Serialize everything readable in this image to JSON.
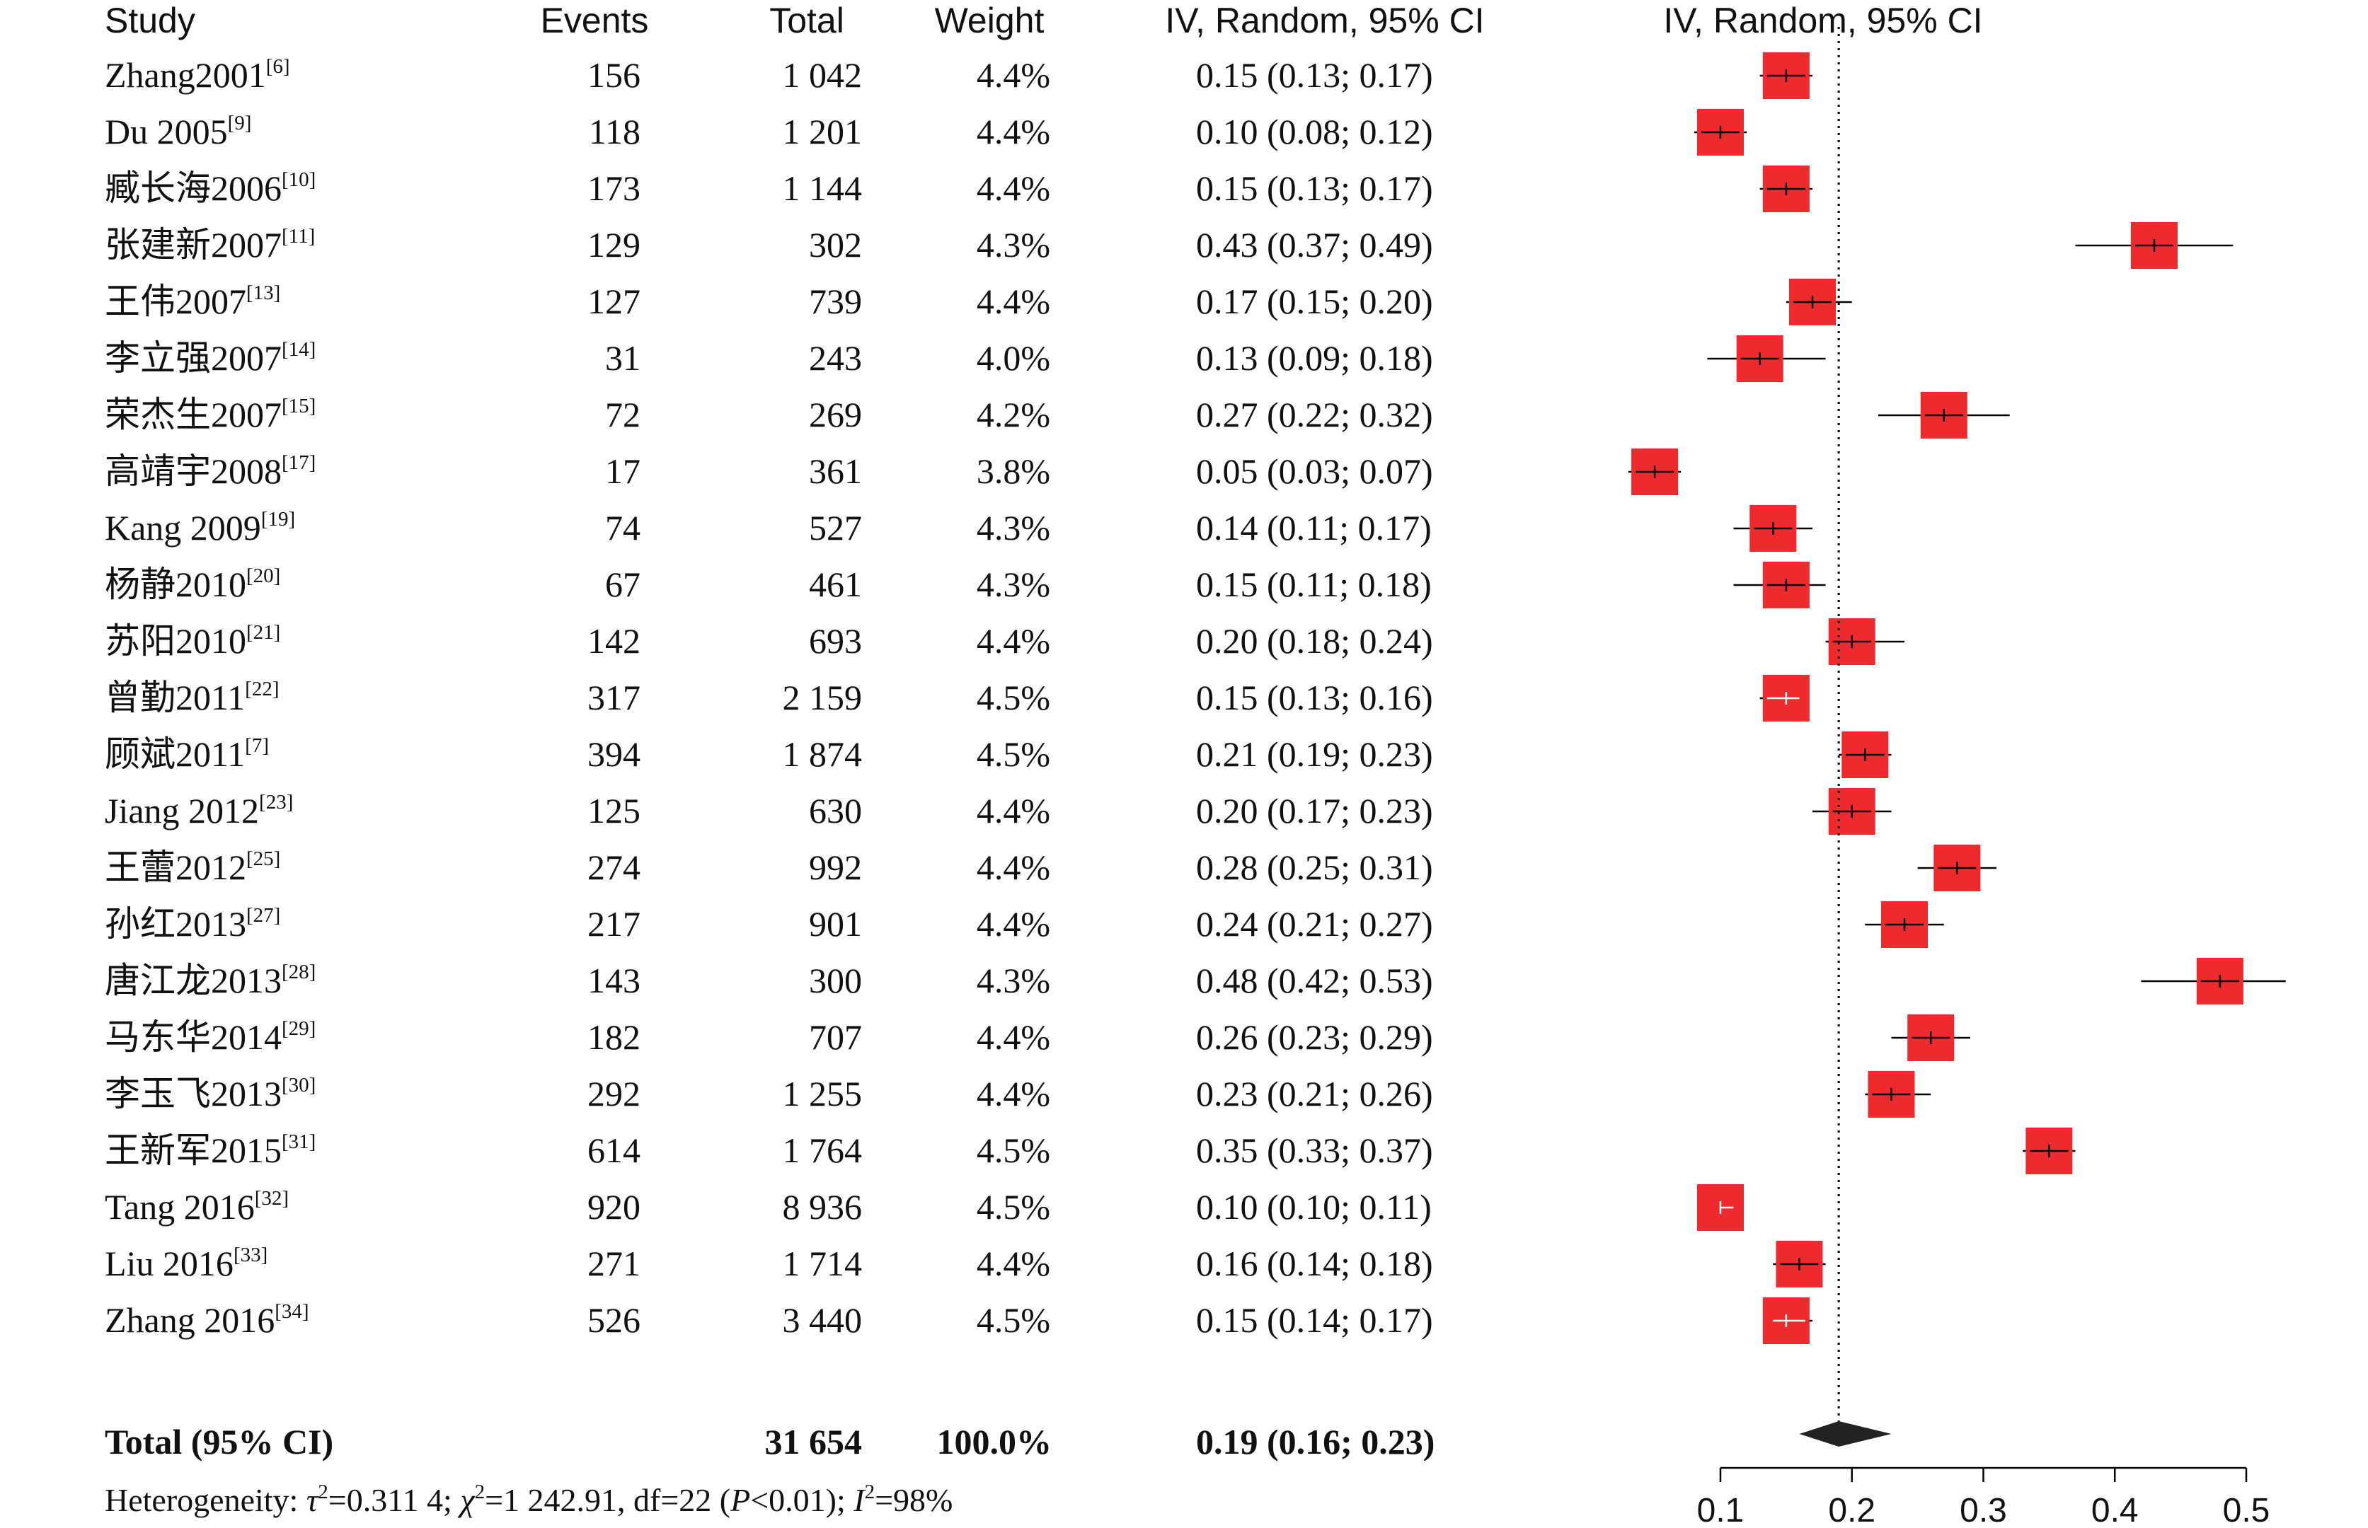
{
  "headers": {
    "study": "Study",
    "events": "Events",
    "total": "Total",
    "weight": "Weight",
    "ci": "IV, Random, 95% CI",
    "plot": "IV, Random, 95% CI"
  },
  "chart_data": {
    "type": "forest",
    "title": "",
    "xlabel": "",
    "xlim": [
      0.1,
      0.5
    ],
    "xticks": [
      "0.1",
      "0.2",
      "0.3",
      "0.4",
      "0.5"
    ],
    "reference_line": 0.19,
    "marker_color": "#ee2a2e",
    "studies": [
      {
        "name": "Zhang2001",
        "ref": "[6]",
        "events": "156",
        "total": "1 042",
        "weight": "4.4%",
        "ci_text": "0.15 (0.13; 0.17)",
        "est": 0.15,
        "lo": 0.13,
        "hi": 0.17
      },
      {
        "name": "Du 2005",
        "ref": "[9]",
        "events": "118",
        "total": "1 201",
        "weight": "4.4%",
        "ci_text": "0.10 (0.08; 0.12)",
        "est": 0.1,
        "lo": 0.08,
        "hi": 0.12
      },
      {
        "name": "臧长海2006",
        "ref": "[10]",
        "events": "173",
        "total": "1 144",
        "weight": "4.4%",
        "ci_text": "0.15 (0.13; 0.17)",
        "est": 0.15,
        "lo": 0.13,
        "hi": 0.17
      },
      {
        "name": "张建新2007",
        "ref": "[11]",
        "events": "129",
        "total": "302",
        "weight": "4.3%",
        "ci_text": "0.43 (0.37; 0.49)",
        "est": 0.43,
        "lo": 0.37,
        "hi": 0.49
      },
      {
        "name": "王伟2007",
        "ref": "[13]",
        "events": "127",
        "total": "739",
        "weight": "4.4%",
        "ci_text": "0.17 (0.15; 0.20)",
        "est": 0.17,
        "lo": 0.15,
        "hi": 0.2
      },
      {
        "name": "李立强2007",
        "ref": "[14]",
        "events": "31",
        "total": "243",
        "weight": "4.0%",
        "ci_text": "0.13 (0.09; 0.18)",
        "est": 0.13,
        "lo": 0.09,
        "hi": 0.18
      },
      {
        "name": "荣杰生2007",
        "ref": "[15]",
        "events": "72",
        "total": "269",
        "weight": "4.2%",
        "ci_text": "0.27 (0.22; 0.32)",
        "est": 0.27,
        "lo": 0.22,
        "hi": 0.32
      },
      {
        "name": "高靖宇2008",
        "ref": "[17]",
        "events": "17",
        "total": "361",
        "weight": "3.8%",
        "ci_text": "0.05 (0.03; 0.07)",
        "est": 0.05,
        "lo": 0.03,
        "hi": 0.07
      },
      {
        "name": "Kang 2009",
        "ref": "[19]",
        "events": "74",
        "total": "527",
        "weight": "4.3%",
        "ci_text": "0.14 (0.11; 0.17)",
        "est": 0.14,
        "lo": 0.11,
        "hi": 0.17
      },
      {
        "name": "杨静2010",
        "ref": "[20]",
        "events": "67",
        "total": "461",
        "weight": "4.3%",
        "ci_text": "0.15 (0.11; 0.18)",
        "est": 0.15,
        "lo": 0.11,
        "hi": 0.18
      },
      {
        "name": "苏阳2010",
        "ref": "[21]",
        "events": "142",
        "total": "693",
        "weight": "4.4%",
        "ci_text": "0.20 (0.18; 0.24)",
        "est": 0.2,
        "lo": 0.18,
        "hi": 0.24
      },
      {
        "name": "曾勤2011",
        "ref": "[22]",
        "events": "317",
        "total": "2 159",
        "weight": "4.5%",
        "ci_text": "0.15 (0.13; 0.16)",
        "est": 0.15,
        "lo": 0.13,
        "hi": 0.16
      },
      {
        "name": "顾斌2011",
        "ref": "[7]",
        "events": "394",
        "total": "1 874",
        "weight": "4.5%",
        "ci_text": "0.21 (0.19; 0.23)",
        "est": 0.21,
        "lo": 0.19,
        "hi": 0.23
      },
      {
        "name": "Jiang 2012",
        "ref": "[23]",
        "events": "125",
        "total": "630",
        "weight": "4.4%",
        "ci_text": "0.20 (0.17; 0.23)",
        "est": 0.2,
        "lo": 0.17,
        "hi": 0.23
      },
      {
        "name": "王蕾2012",
        "ref": "[25]",
        "events": "274",
        "total": "992",
        "weight": "4.4%",
        "ci_text": "0.28 (0.25; 0.31)",
        "est": 0.28,
        "lo": 0.25,
        "hi": 0.31
      },
      {
        "name": "孙红2013",
        "ref": "[27]",
        "events": "217",
        "total": "901",
        "weight": "4.4%",
        "ci_text": "0.24 (0.21; 0.27)",
        "est": 0.24,
        "lo": 0.21,
        "hi": 0.27
      },
      {
        "name": "唐江龙2013",
        "ref": "[28]",
        "events": "143",
        "total": "300",
        "weight": "4.3%",
        "ci_text": "0.48 (0.42; 0.53)",
        "est": 0.48,
        "lo": 0.42,
        "hi": 0.53
      },
      {
        "name": "马东华2014",
        "ref": "[29]",
        "events": "182",
        "total": "707",
        "weight": "4.4%",
        "ci_text": "0.26 (0.23; 0.29)",
        "est": 0.26,
        "lo": 0.23,
        "hi": 0.29
      },
      {
        "name": "李玉飞2013",
        "ref": "[30]",
        "events": "292",
        "total": "1 255",
        "weight": "4.4%",
        "ci_text": "0.23 (0.21; 0.26)",
        "est": 0.23,
        "lo": 0.21,
        "hi": 0.26
      },
      {
        "name": "王新军2015",
        "ref": "[31]",
        "events": "614",
        "total": "1 764",
        "weight": "4.5%",
        "ci_text": "0.35 (0.33; 0.37)",
        "est": 0.35,
        "lo": 0.33,
        "hi": 0.37
      },
      {
        "name": "Tang 2016",
        "ref": "[32]",
        "events": "920",
        "total": "8 936",
        "weight": "4.5%",
        "ci_text": "0.10 (0.10; 0.11)",
        "est": 0.1,
        "lo": 0.1,
        "hi": 0.11
      },
      {
        "name": "Liu 2016",
        "ref": "[33]",
        "events": "271",
        "total": "1 714",
        "weight": "4.4%",
        "ci_text": "0.16 (0.14; 0.18)",
        "est": 0.16,
        "lo": 0.14,
        "hi": 0.18
      },
      {
        "name": "Zhang 2016",
        "ref": "[34]",
        "events": "526",
        "total": "3 440",
        "weight": "4.5%",
        "ci_text": "0.15 (0.14; 0.17)",
        "est": 0.15,
        "lo": 0.14,
        "hi": 0.17
      }
    ],
    "summary": {
      "label": "Total (95% CI)",
      "total": "31 654",
      "weight": "100.0%",
      "ci_text": "0.19 (0.16; 0.23)",
      "est": 0.19,
      "lo": 0.16,
      "hi": 0.23
    }
  },
  "heterogeneity": {
    "prefix": "Heterogeneity: ",
    "tau_sym": "τ",
    "tau_val": "=0.311 4; ",
    "chi_sym": "χ",
    "chi_val": "=1 242.91, df=22 (",
    "p_sym": "P",
    "p_val": "<0.01); ",
    "i_sym": "I",
    "i_val": "=98%",
    "sq": "2"
  }
}
